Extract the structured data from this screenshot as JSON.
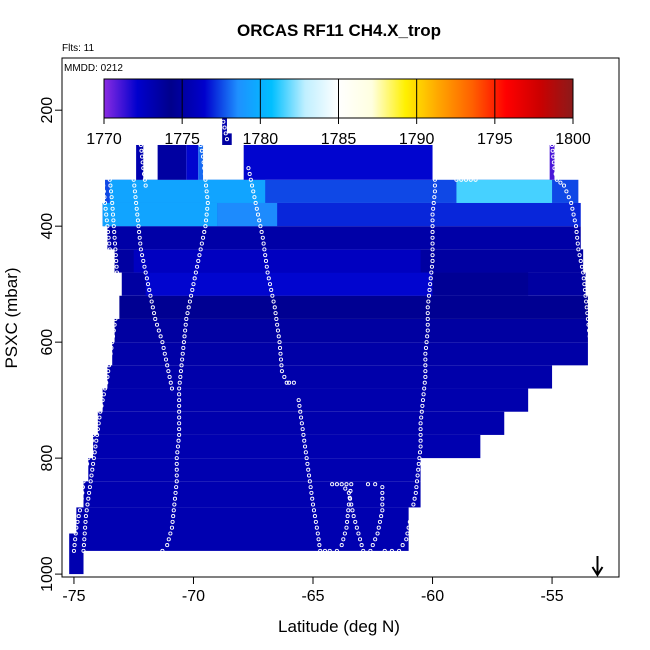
{
  "chart_data": {
    "type": "heatmap",
    "title": "ORCAS RF11 CH4.X_trop",
    "flights_note": "Flts: 11",
    "date_note": "MMDD: 0212",
    "xlabel": "Latitude (deg N)",
    "ylabel": "PSXC (mbar)",
    "xlim": [
      -75.5,
      -52.2
    ],
    "ylim": [
      1005,
      110
    ],
    "x_ticks": [
      -75,
      -70,
      -65,
      -60,
      -55
    ],
    "x_tick_labels": [
      "-75",
      "-70",
      "-65",
      "-60",
      "-55"
    ],
    "y_ticks": [
      200,
      400,
      600,
      800,
      1000
    ],
    "y_tick_labels": [
      "200",
      "400",
      "600",
      "800",
      "1000"
    ],
    "colorbar": {
      "min": 1770,
      "max": 1800,
      "ticks": [
        1770,
        1775,
        1780,
        1785,
        1790,
        1795,
        1800
      ],
      "tick_labels": [
        "1770",
        "1775",
        "1780",
        "1785",
        "1790",
        "1795",
        "1800"
      ],
      "colors": [
        "#8a2be2",
        "#0000cd",
        "#00008b",
        "#0000cd",
        "#1e90ff",
        "#00bfff",
        "#bfefff",
        "#ffffff",
        "#ffffe0",
        "#fff000",
        "#ffa500",
        "#ff6000",
        "#ff0000",
        "#cc0000",
        "#8b1a1a"
      ]
    },
    "cells": [
      {
        "lat0": -75.2,
        "lat1": -74.6,
        "p0": 930,
        "p1": 1000,
        "ch4": 1775.5
      },
      {
        "lat0": -74.9,
        "lat1": -61.0,
        "p0": 885,
        "p1": 960,
        "ch4": 1775.5
      },
      {
        "lat0": -74.6,
        "lat1": -60.5,
        "p0": 840,
        "p1": 885,
        "ch4": 1775.5
      },
      {
        "lat0": -74.4,
        "lat1": -60.5,
        "p0": 800,
        "p1": 840,
        "ch4": 1775.5
      },
      {
        "lat0": -74.2,
        "lat1": -58.0,
        "p0": 760,
        "p1": 800,
        "ch4": 1775.5
      },
      {
        "lat0": -74.0,
        "lat1": -57.0,
        "p0": 720,
        "p1": 760,
        "ch4": 1775.4
      },
      {
        "lat0": -73.8,
        "lat1": -56.0,
        "p0": 680,
        "p1": 720,
        "ch4": 1775.4
      },
      {
        "lat0": -73.6,
        "lat1": -55.0,
        "p0": 640,
        "p1": 680,
        "ch4": 1775.3
      },
      {
        "lat0": -73.4,
        "lat1": -53.5,
        "p0": 600,
        "p1": 640,
        "ch4": 1775.2
      },
      {
        "lat0": -73.3,
        "lat1": -53.5,
        "p0": 560,
        "p1": 600,
        "ch4": 1775.0
      },
      {
        "lat0": -73.1,
        "lat1": -53.5,
        "p0": 520,
        "p1": 560,
        "ch4": 1774.5
      },
      {
        "lat0": -73.0,
        "lat1": -53.6,
        "p0": 480,
        "p1": 520,
        "ch4": 1775.0
      },
      {
        "lat0": -72.0,
        "lat1": -60.0,
        "p0": 480,
        "p1": 520,
        "ch4": 1776.5
      },
      {
        "lat0": -60.0,
        "lat1": -56.0,
        "p0": 480,
        "p1": 520,
        "ch4": 1774.0
      },
      {
        "lat0": -73.3,
        "lat1": -53.7,
        "p0": 440,
        "p1": 480,
        "ch4": 1775.0
      },
      {
        "lat0": -72.5,
        "lat1": -60.5,
        "p0": 440,
        "p1": 480,
        "ch4": 1776.0
      },
      {
        "lat0": -73.6,
        "lat1": -53.8,
        "p0": 400,
        "p1": 440,
        "ch4": 1775.2
      },
      {
        "lat0": -73.8,
        "lat1": -53.8,
        "p0": 360,
        "p1": 400,
        "ch4": 1777.0
      },
      {
        "lat0": -73.8,
        "lat1": -69.0,
        "p0": 360,
        "p1": 400,
        "ch4": 1779.5
      },
      {
        "lat0": -69.0,
        "lat1": -66.5,
        "p0": 360,
        "p1": 400,
        "ch4": 1778.5
      },
      {
        "lat0": -73.7,
        "lat1": -53.9,
        "p0": 320,
        "p1": 360,
        "ch4": 1777.5
      },
      {
        "lat0": -73.5,
        "lat1": -67.0,
        "p0": 320,
        "p1": 360,
        "ch4": 1779.5
      },
      {
        "lat0": -59.0,
        "lat1": -55.0,
        "p0": 320,
        "p1": 360,
        "ch4": 1781.5
      },
      {
        "lat0": -72.4,
        "lat1": -72.1,
        "p0": 260,
        "p1": 320,
        "ch4": 1775.5
      },
      {
        "lat0": -71.5,
        "lat1": -70.3,
        "p0": 260,
        "p1": 320,
        "ch4": 1775.0
      },
      {
        "lat0": -70.3,
        "lat1": -69.8,
        "p0": 260,
        "p1": 320,
        "ch4": 1776.5
      },
      {
        "lat0": -69.8,
        "lat1": -69.6,
        "p0": 260,
        "p1": 320,
        "ch4": 1778.0
      },
      {
        "lat0": -68.8,
        "lat1": -68.6,
        "p0": 210,
        "p1": 240,
        "ch4": 1775.5
      },
      {
        "lat0": -68.8,
        "lat1": -68.4,
        "p0": 240,
        "p1": 260,
        "ch4": 1775.0
      },
      {
        "lat0": -67.9,
        "lat1": -60.0,
        "p0": 260,
        "p1": 320,
        "ch4": 1776.5
      },
      {
        "lat0": -55.1,
        "lat1": -54.9,
        "p0": 260,
        "p1": 320,
        "ch4": 1771.0
      }
    ],
    "tracks": [
      [
        [
          -75.0,
          960
        ],
        [
          -74.9,
          920
        ],
        [
          -74.7,
          880
        ],
        [
          -74.6,
          840
        ],
        [
          -74.4,
          800
        ],
        [
          -74.2,
          760
        ],
        [
          -74.1,
          720
        ],
        [
          -73.9,
          680
        ],
        [
          -73.7,
          640
        ],
        [
          -73.6,
          600
        ],
        [
          -73.5,
          560
        ],
        [
          -73.4,
          520
        ],
        [
          -73.5,
          480
        ],
        [
          -73.5,
          440
        ],
        [
          -73.6,
          400
        ],
        [
          -73.7,
          360
        ],
        [
          -73.8,
          320
        ]
      ],
      [
        [
          -74.6,
          960
        ],
        [
          -74.5,
          900
        ],
        [
          -74.3,
          840
        ],
        [
          -74.1,
          780
        ],
        [
          -73.9,
          720
        ],
        [
          -73.6,
          660
        ],
        [
          -73.4,
          600
        ],
        [
          -73.2,
          540
        ],
        [
          -73.2,
          480
        ],
        [
          -73.3,
          420
        ],
        [
          -73.4,
          360
        ],
        [
          -73.5,
          320
        ]
      ],
      [
        [
          -72.5,
          320
        ],
        [
          -72.4,
          360
        ],
        [
          -72.3,
          400
        ],
        [
          -72.2,
          440
        ],
        [
          -72.0,
          480
        ],
        [
          -71.8,
          520
        ],
        [
          -71.6,
          560
        ],
        [
          -71.3,
          600
        ],
        [
          -71.1,
          640
        ],
        [
          -70.9,
          680
        ]
      ],
      [
        [
          -72.2,
          260
        ],
        [
          -72.1,
          300
        ],
        [
          -72.0,
          330
        ]
      ],
      [
        [
          -71.3,
          960
        ],
        [
          -71.1,
          950
        ],
        [
          -70.9,
          920
        ],
        [
          -70.8,
          880
        ],
        [
          -70.7,
          840
        ],
        [
          -70.7,
          800
        ],
        [
          -70.6,
          760
        ],
        [
          -70.6,
          720
        ],
        [
          -70.6,
          680
        ],
        [
          -70.5,
          640
        ],
        [
          -70.4,
          600
        ],
        [
          -70.3,
          560
        ],
        [
          -70.1,
          520
        ],
        [
          -69.9,
          480
        ],
        [
          -69.7,
          440
        ],
        [
          -69.5,
          400
        ],
        [
          -69.4,
          360
        ],
        [
          -69.5,
          320
        ],
        [
          -69.6,
          280
        ],
        [
          -69.7,
          260
        ]
      ],
      [
        [
          -68.8,
          210
        ],
        [
          -68.7,
          230
        ],
        [
          -68.6,
          250
        ]
      ],
      [
        [
          -67.7,
          300
        ],
        [
          -67.4,
          360
        ],
        [
          -67.1,
          420
        ],
        [
          -66.9,
          480
        ],
        [
          -66.6,
          540
        ],
        [
          -66.4,
          600
        ],
        [
          -66.3,
          650
        ],
        [
          -66.1,
          670
        ],
        [
          -66.0,
          670
        ],
        [
          -65.8,
          670
        ]
      ],
      [
        [
          -65.6,
          700
        ],
        [
          -65.4,
          760
        ],
        [
          -65.2,
          820
        ],
        [
          -65.0,
          880
        ],
        [
          -64.8,
          930
        ],
        [
          -64.7,
          960
        ],
        [
          -64.3,
          960
        ],
        [
          -64.0,
          960
        ],
        [
          -63.8,
          950
        ],
        [
          -63.6,
          920
        ],
        [
          -63.5,
          880
        ],
        [
          -63.4,
          845
        ],
        [
          -63.6,
          845
        ]
      ],
      [
        [
          -64.2,
          845
        ],
        [
          -64.0,
          845
        ],
        [
          -63.8,
          845
        ],
        [
          -63.5,
          860
        ],
        [
          -63.3,
          900
        ],
        [
          -63.1,
          930
        ],
        [
          -62.9,
          960
        ],
        [
          -62.6,
          960
        ],
        [
          -62.3,
          930
        ],
        [
          -62.1,
          890
        ],
        [
          -62.1,
          850
        ],
        [
          -62.4,
          845
        ],
        [
          -62.7,
          845
        ]
      ],
      [
        [
          -62.0,
          960
        ],
        [
          -61.7,
          960
        ],
        [
          -61.4,
          960
        ],
        [
          -61.1,
          940
        ],
        [
          -60.9,
          900
        ],
        [
          -60.7,
          860
        ],
        [
          -60.6,
          820
        ],
        [
          -60.5,
          780
        ],
        [
          -60.5,
          740
        ],
        [
          -60.4,
          700
        ],
        [
          -60.3,
          660
        ],
        [
          -60.3,
          620
        ],
        [
          -60.2,
          580
        ],
        [
          -60.2,
          540
        ],
        [
          -60.1,
          500
        ],
        [
          -60.0,
          460
        ],
        [
          -60.0,
          420
        ],
        [
          -60.0,
          380
        ],
        [
          -59.9,
          340
        ],
        [
          -59.9,
          310
        ]
      ],
      [
        [
          -59.0,
          320
        ],
        [
          -58.6,
          320
        ],
        [
          -58.2,
          320
        ]
      ],
      [
        [
          -55.0,
          260
        ],
        [
          -54.9,
          300
        ],
        [
          -54.8,
          320
        ],
        [
          -54.5,
          330
        ],
        [
          -54.2,
          360
        ],
        [
          -54.0,
          400
        ],
        [
          -53.9,
          440
        ],
        [
          -53.7,
          480
        ],
        [
          -53.6,
          520
        ],
        [
          -53.5,
          560
        ],
        [
          -53.4,
          600
        ],
        [
          -53.2,
          640
        ]
      ]
    ],
    "marker": {
      "type": "arrow",
      "direction": "down",
      "lat": -53.1
    }
  }
}
